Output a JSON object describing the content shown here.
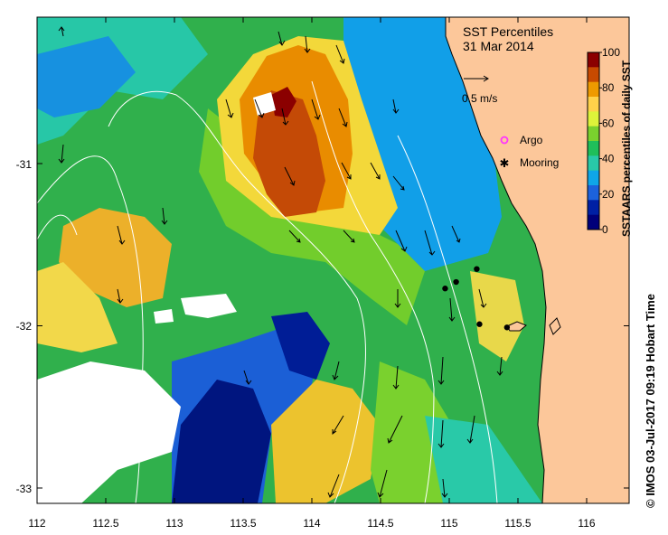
{
  "title": "SST Percentiles",
  "date": "31 Mar 2014",
  "velocity_scale_label": "0.5 m/s",
  "legend": {
    "argo_label": "Argo",
    "mooring_label": "Mooring",
    "argo_color": "#ff33ff",
    "mooring_color": "#000000"
  },
  "colorbar": {
    "label": "SSTAARS percentiles of daily SST",
    "ticks": [
      "100",
      "80",
      "60",
      "40",
      "20",
      "0"
    ],
    "colors": [
      "#8b0000",
      "#c84a00",
      "#ee9a00",
      "#ffd24a",
      "#ddf33a",
      "#7ad12e",
      "#1fbe5a",
      "#29c9a8",
      "#0fa6e8",
      "#1c62dc",
      "#0020a4",
      "#00007a"
    ]
  },
  "axes": {
    "x_ticks": [
      "112",
      "112.5",
      "113",
      "113.5",
      "114",
      "114.5",
      "115",
      "115.5",
      "116"
    ],
    "y_ticks": [
      "-31",
      "-32",
      "-33"
    ]
  },
  "credit": "© IMOS 03-Jul-2017 09:19 Hobart Time",
  "moorings": [
    {
      "lon": 114.97,
      "lat": -31.77
    },
    {
      "lon": 115.05,
      "lat": -31.73
    },
    {
      "lon": 115.2,
      "lat": -31.65
    },
    {
      "lon": 115.22,
      "lat": -31.99
    },
    {
      "lon": 115.42,
      "lat": -32.01
    }
  ]
}
